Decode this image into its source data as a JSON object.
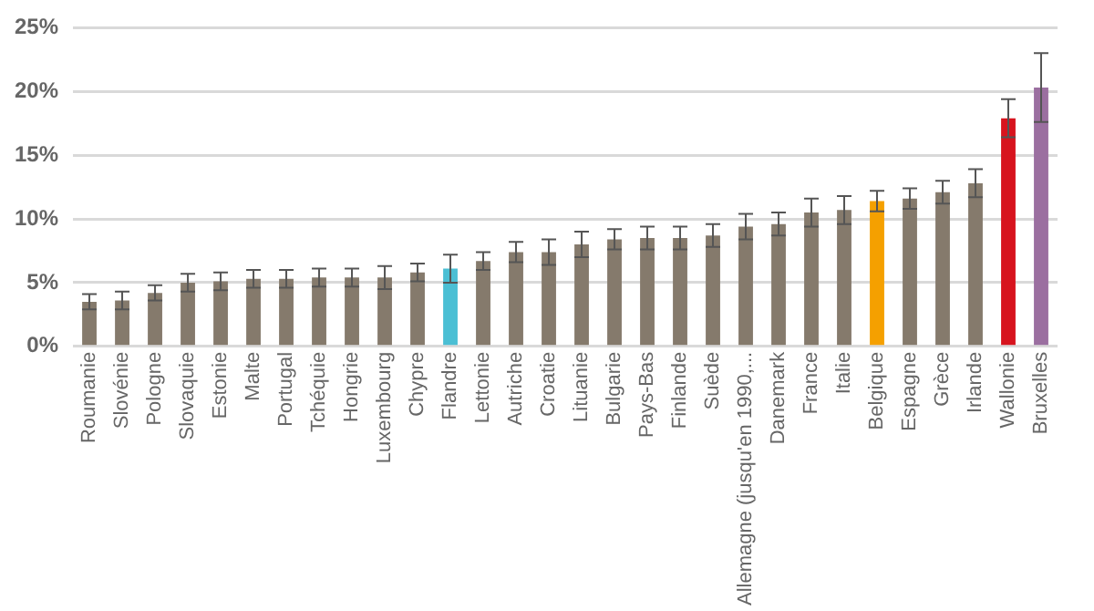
{
  "chart_data": {
    "type": "bar",
    "categories": [
      "Roumanie",
      "Slovénie",
      "Pologne",
      "Slovaquie",
      "Estonie",
      "Malte",
      "Portugal",
      "Tchéquie",
      "Hongrie",
      "Luxembourg",
      "Chypre",
      "Flandre",
      "Lettonie",
      "Autriche",
      "Croatie",
      "Lituanie",
      "Bulgarie",
      "Pays-Bas",
      "Finlande",
      "Suède",
      "Allemagne (jusqu'en 1990,...",
      "Danemark",
      "France",
      "Italie",
      "Belgique",
      "Espagne",
      "Grèce",
      "Irlande",
      "Wallonie",
      "Bruxelles"
    ],
    "values": [
      3.5,
      3.6,
      4.2,
      5.0,
      5.1,
      5.3,
      5.3,
      5.4,
      5.4,
      5.4,
      5.8,
      6.1,
      6.7,
      7.4,
      7.4,
      8.0,
      8.4,
      8.5,
      8.5,
      8.7,
      9.4,
      9.6,
      10.5,
      10.7,
      11.4,
      11.6,
      12.1,
      12.8,
      17.9,
      20.3
    ],
    "errors": [
      0.6,
      0.7,
      0.6,
      0.7,
      0.7,
      0.7,
      0.7,
      0.7,
      0.7,
      0.9,
      0.7,
      1.1,
      0.7,
      0.8,
      1.0,
      1.0,
      0.8,
      0.9,
      0.9,
      0.9,
      1.0,
      0.9,
      1.1,
      1.1,
      0.8,
      0.8,
      0.9,
      1.1,
      1.5,
      2.7
    ],
    "colors": [
      "#857a6c",
      "#857a6c",
      "#857a6c",
      "#857a6c",
      "#857a6c",
      "#857a6c",
      "#857a6c",
      "#857a6c",
      "#857a6c",
      "#857a6c",
      "#857a6c",
      "#4bbfd4",
      "#857a6c",
      "#857a6c",
      "#857a6c",
      "#857a6c",
      "#857a6c",
      "#857a6c",
      "#857a6c",
      "#857a6c",
      "#857a6c",
      "#857a6c",
      "#857a6c",
      "#857a6c",
      "#f5a000",
      "#857a6c",
      "#857a6c",
      "#857a6c",
      "#d7141e",
      "#9b6fa0"
    ],
    "ylim": [
      0,
      25
    ],
    "yticks": [
      {
        "value": 0,
        "label": "0%"
      },
      {
        "value": 5,
        "label": "5%"
      },
      {
        "value": 10,
        "label": "10%"
      },
      {
        "value": 15,
        "label": "15%"
      },
      {
        "value": 20,
        "label": "20%"
      },
      {
        "value": 25,
        "label": "25%"
      }
    ],
    "grid": "y",
    "legend": false
  }
}
